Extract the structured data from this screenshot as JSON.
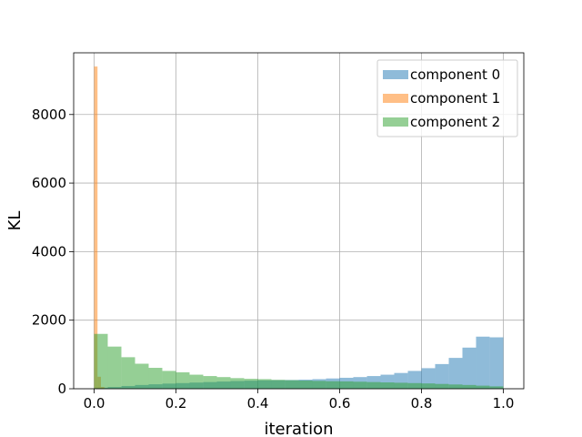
{
  "chart_data": {
    "type": "bar",
    "subtype": "overlapping-histogram",
    "xlabel": "iteration",
    "ylabel": "KL",
    "xlim": [
      -0.05,
      1.05
    ],
    "ylim": [
      0,
      9800
    ],
    "xticks": [
      0.0,
      0.2,
      0.4,
      0.6,
      0.8,
      1.0
    ],
    "xtick_labels": [
      "0.0",
      "0.2",
      "0.4",
      "0.6",
      "0.8",
      "1.0"
    ],
    "yticks": [
      0,
      2000,
      4000,
      6000,
      8000
    ],
    "ytick_labels": [
      "0",
      "2000",
      "4000",
      "6000",
      "8000"
    ],
    "grid": true,
    "legend_position": "top-right",
    "bin_width": 0.0333,
    "series": [
      {
        "name": "component 0",
        "color": "#1f77b4",
        "bin_starts": [
          0.0,
          0.0333,
          0.0667,
          0.1,
          0.1333,
          0.1667,
          0.2,
          0.2333,
          0.2667,
          0.3,
          0.3333,
          0.3667,
          0.4,
          0.4333,
          0.4667,
          0.5,
          0.5333,
          0.5667,
          0.6,
          0.6333,
          0.6667,
          0.7,
          0.7333,
          0.7667,
          0.8,
          0.8333,
          0.8667,
          0.9,
          0.9333,
          0.9667
        ],
        "values": [
          30,
          50,
          80,
          110,
          130,
          150,
          165,
          180,
          195,
          210,
          225,
          235,
          245,
          250,
          255,
          265,
          280,
          300,
          320,
          340,
          370,
          410,
          460,
          520,
          600,
          720,
          900,
          1200,
          1520,
          1500
        ]
      },
      {
        "name": "component 1",
        "color": "#ff7f0e",
        "bin_starts": [
          0.0,
          0.0083,
          0.0167
        ],
        "bin_width": 0.0083,
        "values": [
          9400,
          350,
          50
        ]
      },
      {
        "name": "component 2",
        "color": "#2ca02c",
        "bin_starts": [
          0.0,
          0.0333,
          0.0667,
          0.1,
          0.1333,
          0.1667,
          0.2,
          0.2333,
          0.2667,
          0.3,
          0.3333,
          0.3667,
          0.4,
          0.4333,
          0.4667,
          0.5,
          0.5333,
          0.5667,
          0.6,
          0.6333,
          0.6667,
          0.7,
          0.7333,
          0.7667,
          0.8,
          0.8333,
          0.8667,
          0.9,
          0.9333,
          0.9667
        ],
        "values": [
          1600,
          1230,
          920,
          730,
          610,
          520,
          480,
          410,
          370,
          340,
          310,
          290,
          280,
          260,
          250,
          240,
          230,
          220,
          215,
          205,
          195,
          185,
          175,
          165,
          155,
          140,
          125,
          110,
          90,
          70
        ]
      }
    ]
  }
}
